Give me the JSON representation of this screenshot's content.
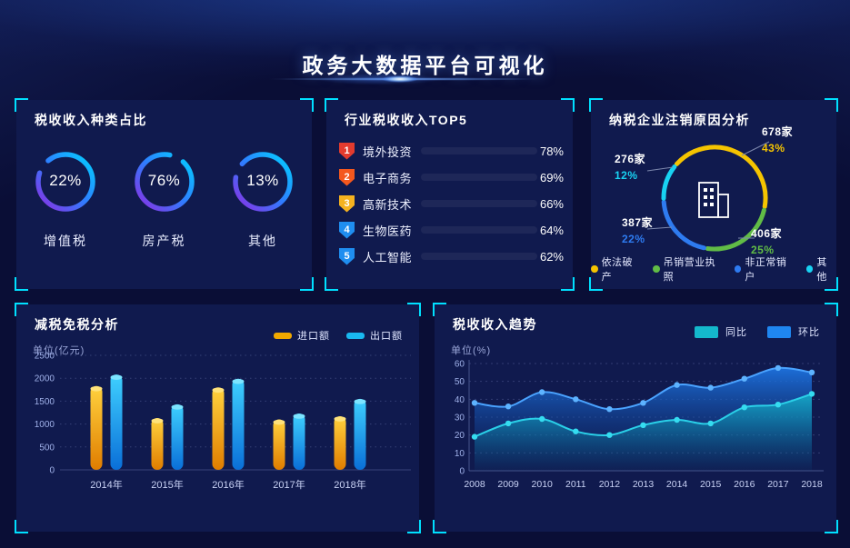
{
  "page": {
    "title": "政务大数据平台可视化"
  },
  "panels": {
    "tax_types": {
      "title": "税收收入种类占比",
      "rings": [
        {
          "pct": "22%",
          "label": "增值税",
          "value": 22
        },
        {
          "pct": "76%",
          "label": "房产税",
          "value": 76
        },
        {
          "pct": "13%",
          "label": "其他",
          "value": 13
        }
      ]
    },
    "industry_top5": {
      "title": "行业税收收入TOP5",
      "items": [
        {
          "rank": "1",
          "label": "境外投资",
          "pct": "78%",
          "value": 78,
          "badge_color": "#e33b2e"
        },
        {
          "rank": "2",
          "label": "电子商务",
          "pct": "69%",
          "value": 69,
          "badge_color": "#f4581e"
        },
        {
          "rank": "3",
          "label": "高新技术",
          "pct": "66%",
          "value": 66,
          "badge_color": "#f5b21f"
        },
        {
          "rank": "4",
          "label": "生物医药",
          "pct": "64%",
          "value": 64,
          "badge_color": "#1f8ef0"
        },
        {
          "rank": "5",
          "label": "人工智能",
          "pct": "62%",
          "value": 62,
          "badge_color": "#1f8ef0"
        }
      ]
    },
    "deregistration": {
      "title": "纳税企业注销原因分析",
      "segments": [
        {
          "label": "依法破产",
          "count": "678家",
          "pct": "43%",
          "value": 43,
          "color": "#f5c400"
        },
        {
          "label": "吊销营业执照",
          "count": "406家",
          "pct": "25%",
          "value": 25,
          "color": "#61bc46"
        },
        {
          "label": "非正常销户",
          "count": "387家",
          "pct": "22%",
          "value": 22,
          "color": "#2e7bf0"
        },
        {
          "label": "其他",
          "count": "276家",
          "pct": "12%",
          "value": 12,
          "color": "#18d2f2"
        }
      ]
    },
    "tax_reduction": {
      "title": "减税免税分析",
      "unit": "单位(亿元)"
    },
    "tax_trend": {
      "title": "税收收入趋势",
      "unit": "单位(%)"
    }
  },
  "chart_data": [
    {
      "type": "pie",
      "variant": "gauge-rings",
      "title": "税收收入种类占比",
      "labels": [
        "增值税",
        "房产税",
        "其他"
      ],
      "values": [
        22,
        76,
        13
      ]
    },
    {
      "type": "bar",
      "variant": "horizontal",
      "title": "行业税收收入TOP5",
      "unit": "%",
      "categories": [
        "境外投资",
        "电子商务",
        "高新技术",
        "生物医药",
        "人工智能"
      ],
      "values": [
        78,
        69,
        66,
        64,
        62
      ]
    },
    {
      "type": "pie",
      "variant": "donut",
      "title": "纳税企业注销原因分析",
      "labels": [
        "依法破产",
        "吊销营业执照",
        "非正常销户",
        "其他"
      ],
      "values": [
        43,
        25,
        22,
        12
      ],
      "counts": [
        678,
        406,
        387,
        276
      ],
      "legend_position": "bottom"
    },
    {
      "type": "bar",
      "title": "减税免税分析",
      "ylabel": "单位(亿元)",
      "ylim": [
        0,
        2500
      ],
      "ytick_step": 500,
      "grid": "dotted",
      "legend_position": "top-right",
      "categories": [
        "2014年",
        "2015年",
        "2016年",
        "2017年",
        "2018年"
      ],
      "series": [
        {
          "name": "进口额",
          "color": "#f0a800",
          "values": [
            1830,
            1130,
            1800,
            1100,
            1170
          ]
        },
        {
          "name": "出口额",
          "color": "#19b8f0",
          "values": [
            2080,
            1430,
            1990,
            1230,
            1550
          ]
        }
      ]
    },
    {
      "type": "area",
      "title": "税收收入趋势",
      "ylabel": "单位(%)",
      "ylim": [
        0,
        60
      ],
      "ytick_step": 10,
      "grid": "dotted",
      "legend_position": "top-right",
      "x": [
        "2008",
        "2009",
        "2010",
        "2011",
        "2012",
        "2013",
        "2014",
        "2015",
        "2016",
        "2017",
        "2018"
      ],
      "series": [
        {
          "name": "同比",
          "color": "#14b8cc",
          "values": [
            19,
            26.5,
            29,
            22,
            20,
            25.5,
            28.5,
            26.5,
            35.5,
            37,
            43
          ]
        },
        {
          "name": "环比",
          "color": "#1f86f0",
          "values": [
            38,
            36,
            44,
            40,
            34.5,
            38,
            48,
            46.5,
            51.5,
            57.5,
            55
          ]
        }
      ]
    }
  ]
}
